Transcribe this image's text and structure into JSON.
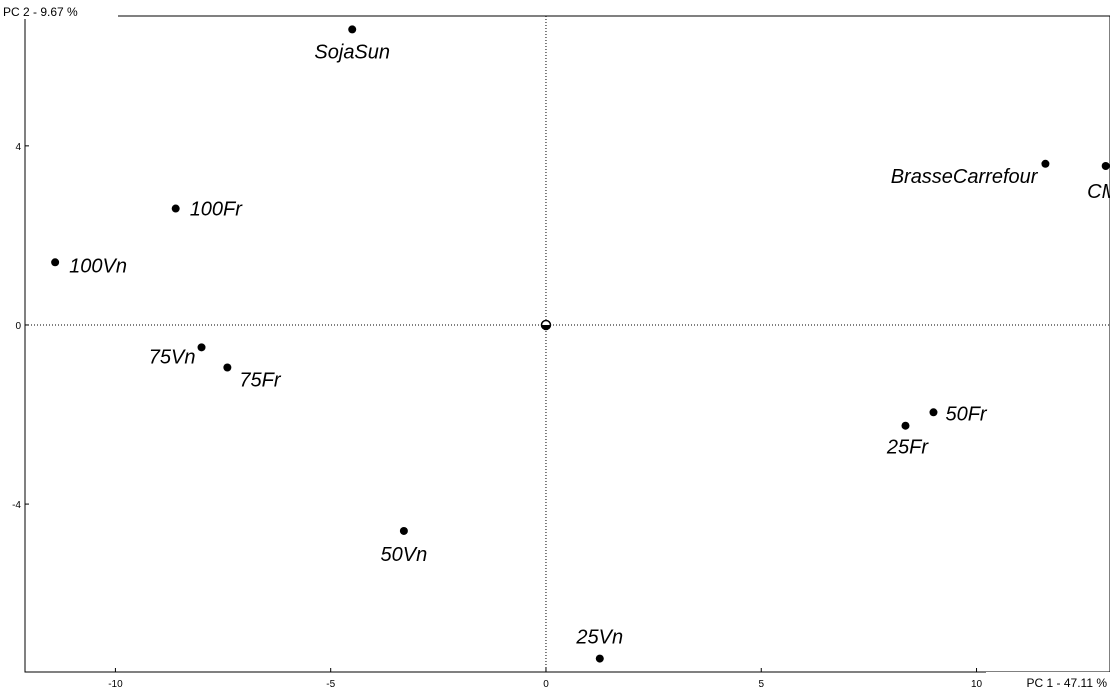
{
  "chart_data": {
    "type": "scatter",
    "xlabel": "PC 1  -  47.11 %",
    "ylabel": "PC 2  -  9.67 %",
    "xlim": [
      -12.1,
      13.1
    ],
    "ylim": [
      -7.75,
      6.9
    ],
    "x_ticks": [
      -10,
      -5,
      0,
      5,
      10
    ],
    "y_ticks": [
      -4,
      0,
      4
    ],
    "x_tick_labels": [
      "-10",
      "-5",
      "0",
      "5",
      "10"
    ],
    "y_tick_labels": [
      "-4",
      "0",
      "4"
    ],
    "grid": false,
    "origin_lines": true,
    "points": [
      {
        "label": "SojaSun",
        "x": -4.5,
        "y": 6.6
      },
      {
        "label": "100Fr",
        "x": -8.6,
        "y": 2.6
      },
      {
        "label": "100Vn",
        "x": -11.4,
        "y": 1.4
      },
      {
        "label": "75Vn",
        "x": -8.0,
        "y": -0.5
      },
      {
        "label": "75Fr",
        "x": -7.4,
        "y": -0.95
      },
      {
        "label": "50Vn",
        "x": -3.3,
        "y": -4.6
      },
      {
        "label": "25Vn",
        "x": 1.25,
        "y": -7.45
      },
      {
        "label": "BrasseCarrefour",
        "x": 11.6,
        "y": 3.6
      },
      {
        "label": "CM",
        "x": 13.0,
        "y": 3.55
      },
      {
        "label": "50Fr",
        "x": 9.0,
        "y": -1.95
      },
      {
        "label": "25Fr",
        "x": 8.35,
        "y": -2.25
      },
      {
        "label": "",
        "x": 0,
        "y": 0
      }
    ]
  }
}
